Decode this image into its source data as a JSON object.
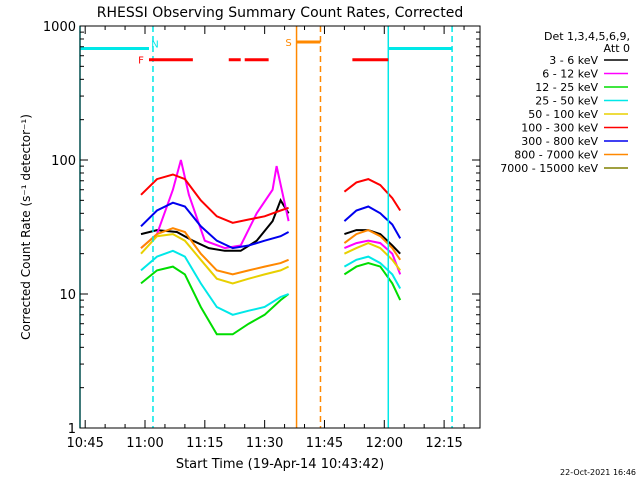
{
  "chart_data": {
    "type": "line",
    "title": "RHESSI Observing Summary Count Rates, Corrected",
    "xlabel": "Start Time (19-Apr-14 10:43:42)",
    "ylabel": "Corrected Count Rate (s⁻¹ detector⁻¹)",
    "x_range": [
      "10:43:42",
      "12:24:00"
    ],
    "y_scale": "log",
    "ylim": [
      1,
      1000
    ],
    "x_ticks": [
      "10:45",
      "11:00",
      "11:15",
      "11:30",
      "11:45",
      "12:00",
      "12:15"
    ],
    "y_ticks": [
      "1",
      "10",
      "100",
      "1000"
    ],
    "legend_position": "top-right",
    "legend_header": [
      "Det 1,3,4,5,6,9,",
      "Att 0"
    ],
    "footer_date": "22-Oct-2021 16:46",
    "segment_gap": [
      "11:39",
      "11:48"
    ],
    "series": [
      {
        "name": "3 - 6 keV",
        "color": "#000000",
        "values": [
          [
            "10:59",
            28
          ],
          [
            "11:03",
            30
          ],
          [
            "11:08",
            29
          ],
          [
            "11:12",
            25
          ],
          [
            "11:16",
            22
          ],
          [
            "11:20",
            21
          ],
          [
            "11:24",
            21
          ],
          [
            "11:28",
            25
          ],
          [
            "11:32",
            35
          ],
          [
            "11:34",
            50
          ],
          [
            "11:36",
            40
          ],
          [
            "11:50",
            28
          ],
          [
            "11:53",
            30
          ],
          [
            "11:56",
            30
          ],
          [
            "11:59",
            28
          ],
          [
            "12:02",
            23
          ],
          [
            "12:04",
            20
          ]
        ]
      },
      {
        "name": "6 - 12 keV",
        "color": "#ff00ff",
        "values": [
          [
            "10:59",
            22
          ],
          [
            "11:03",
            28
          ],
          [
            "11:07",
            60
          ],
          [
            "11:09",
            100
          ],
          [
            "11:11",
            55
          ],
          [
            "11:15",
            25
          ],
          [
            "11:20",
            22
          ],
          [
            "11:24",
            23
          ],
          [
            "11:28",
            40
          ],
          [
            "11:32",
            60
          ],
          [
            "11:33",
            90
          ],
          [
            "11:36",
            35
          ],
          [
            "11:50",
            22
          ],
          [
            "11:53",
            24
          ],
          [
            "11:56",
            25
          ],
          [
            "11:59",
            24
          ],
          [
            "12:02",
            20
          ],
          [
            "12:04",
            14
          ]
        ]
      },
      {
        "name": "12 - 25 keV",
        "color": "#00dd00",
        "values": [
          [
            "10:59",
            12
          ],
          [
            "11:03",
            15
          ],
          [
            "11:07",
            16
          ],
          [
            "11:10",
            14
          ],
          [
            "11:14",
            8
          ],
          [
            "11:18",
            5
          ],
          [
            "11:22",
            5
          ],
          [
            "11:26",
            6
          ],
          [
            "11:30",
            7
          ],
          [
            "11:34",
            9
          ],
          [
            "11:36",
            10
          ],
          [
            "11:50",
            14
          ],
          [
            "11:53",
            16
          ],
          [
            "11:56",
            17
          ],
          [
            "11:59",
            16
          ],
          [
            "12:02",
            12
          ],
          [
            "12:04",
            9
          ]
        ]
      },
      {
        "name": "25 - 50 keV",
        "color": "#00e8e8",
        "values": [
          [
            "10:59",
            15
          ],
          [
            "11:03",
            19
          ],
          [
            "11:07",
            21
          ],
          [
            "11:10",
            19
          ],
          [
            "11:14",
            12
          ],
          [
            "11:18",
            8
          ],
          [
            "11:22",
            7
          ],
          [
            "11:26",
            7.5
          ],
          [
            "11:30",
            8
          ],
          [
            "11:34",
            9.5
          ],
          [
            "11:36",
            10
          ],
          [
            "11:50",
            16
          ],
          [
            "11:53",
            18
          ],
          [
            "11:56",
            19
          ],
          [
            "11:59",
            17
          ],
          [
            "12:02",
            14
          ],
          [
            "12:04",
            11
          ]
        ]
      },
      {
        "name": "50 - 100 keV",
        "color": "#e8d000",
        "values": [
          [
            "10:59",
            20
          ],
          [
            "11:03",
            27
          ],
          [
            "11:07",
            28
          ],
          [
            "11:10",
            25
          ],
          [
            "11:14",
            18
          ],
          [
            "11:18",
            13
          ],
          [
            "11:22",
            12
          ],
          [
            "11:26",
            13
          ],
          [
            "11:30",
            14
          ],
          [
            "11:34",
            15
          ],
          [
            "11:36",
            16
          ],
          [
            "11:50",
            20
          ],
          [
            "11:53",
            22
          ],
          [
            "11:56",
            24
          ],
          [
            "11:59",
            22
          ],
          [
            "12:02",
            18
          ],
          [
            "12:04",
            15
          ]
        ]
      },
      {
        "name": "100 - 300 keV",
        "color": "#ff0000",
        "values": [
          [
            "10:59",
            55
          ],
          [
            "11:03",
            72
          ],
          [
            "11:07",
            78
          ],
          [
            "11:10",
            72
          ],
          [
            "11:14",
            50
          ],
          [
            "11:18",
            38
          ],
          [
            "11:22",
            34
          ],
          [
            "11:26",
            36
          ],
          [
            "11:30",
            38
          ],
          [
            "11:34",
            42
          ],
          [
            "11:36",
            44
          ],
          [
            "11:50",
            58
          ],
          [
            "11:53",
            68
          ],
          [
            "11:56",
            72
          ],
          [
            "11:59",
            65
          ],
          [
            "12:02",
            52
          ],
          [
            "12:04",
            42
          ]
        ]
      },
      {
        "name": "300 - 800 keV",
        "color": "#0000ee",
        "values": [
          [
            "10:59",
            32
          ],
          [
            "11:03",
            42
          ],
          [
            "11:07",
            48
          ],
          [
            "11:10",
            45
          ],
          [
            "11:14",
            32
          ],
          [
            "11:18",
            25
          ],
          [
            "11:22",
            22
          ],
          [
            "11:26",
            23
          ],
          [
            "11:30",
            25
          ],
          [
            "11:34",
            27
          ],
          [
            "11:36",
            29
          ],
          [
            "11:50",
            35
          ],
          [
            "11:53",
            42
          ],
          [
            "11:56",
            45
          ],
          [
            "11:59",
            40
          ],
          [
            "12:02",
            33
          ],
          [
            "12:04",
            26
          ]
        ]
      },
      {
        "name": "800 - 7000 keV",
        "color": "#ff8800",
        "values": [
          [
            "10:59",
            22
          ],
          [
            "11:03",
            28
          ],
          [
            "11:07",
            31
          ],
          [
            "11:10",
            29
          ],
          [
            "11:14",
            20
          ],
          [
            "11:18",
            15
          ],
          [
            "11:22",
            14
          ],
          [
            "11:26",
            15
          ],
          [
            "11:30",
            16
          ],
          [
            "11:34",
            17
          ],
          [
            "11:36",
            18
          ],
          [
            "11:50",
            24
          ],
          [
            "11:53",
            28
          ],
          [
            "11:56",
            30
          ],
          [
            "11:59",
            27
          ],
          [
            "12:02",
            22
          ],
          [
            "12:04",
            18
          ]
        ]
      },
      {
        "name": "7000 - 15000 keV",
        "color": "#808000",
        "values": []
      }
    ],
    "flags": [
      {
        "label": "N",
        "color": "#00e8e8",
        "intervals": [
          [
            "10:43:42",
            "11:01"
          ],
          [
            "12:01",
            "12:17"
          ]
        ]
      },
      {
        "label": "F",
        "color": "#ff0000",
        "intervals": [
          [
            "11:01",
            "11:12"
          ],
          [
            "11:21",
            "11:24"
          ],
          [
            "11:25",
            "11:31"
          ],
          [
            "11:52",
            "12:01"
          ]
        ]
      },
      {
        "label": "S",
        "color": "#ff8800",
        "intervals": [
          [
            "11:38",
            "11:44"
          ]
        ]
      }
    ],
    "vertical_markers": [
      {
        "time": "11:02",
        "color": "#00e8e8",
        "style": "dashed"
      },
      {
        "time": "11:38",
        "color": "#ff8800",
        "style": "solid"
      },
      {
        "time": "11:44",
        "color": "#ff8800",
        "style": "dashed"
      },
      {
        "time": "12:01",
        "color": "#00e8e8",
        "style": "solid"
      },
      {
        "time": "12:17",
        "color": "#00e8e8",
        "style": "dashed"
      },
      {
        "time": "10:43:42",
        "color": "#00e8e8",
        "style": "solid"
      }
    ]
  }
}
